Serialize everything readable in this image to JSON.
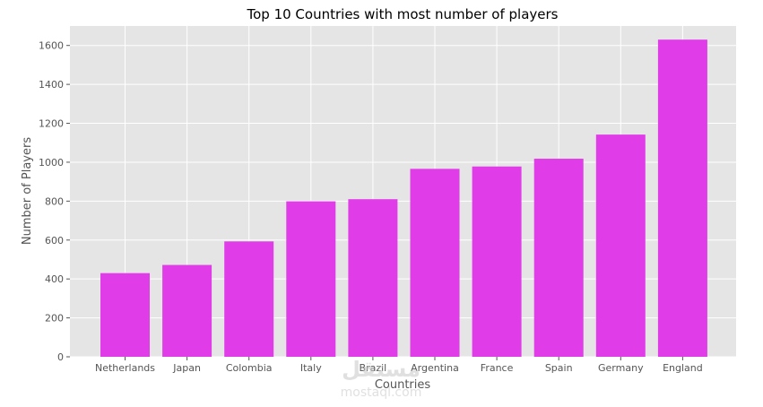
{
  "chart_data": {
    "type": "bar",
    "title": "Top 10 Countries with most number of players",
    "xlabel": "Countries",
    "ylabel": "Number of Players",
    "categories": [
      "Netherlands",
      "Japan",
      "Colombia",
      "Italy",
      "Brazil",
      "Argentina",
      "France",
      "Spain",
      "Germany",
      "England"
    ],
    "values": [
      430,
      472,
      593,
      799,
      810,
      966,
      978,
      1018,
      1142,
      1630
    ],
    "ylim": [
      0,
      1700
    ],
    "yticks": [
      0,
      200,
      400,
      600,
      800,
      1000,
      1200,
      1400,
      1600
    ],
    "grid": true,
    "bar_color": "#e03ce8",
    "background_color": "#e5e5e5",
    "grid_color": "#ffffff"
  },
  "watermark": {
    "arabic": "مستقل",
    "domain": "mostaql.com"
  }
}
